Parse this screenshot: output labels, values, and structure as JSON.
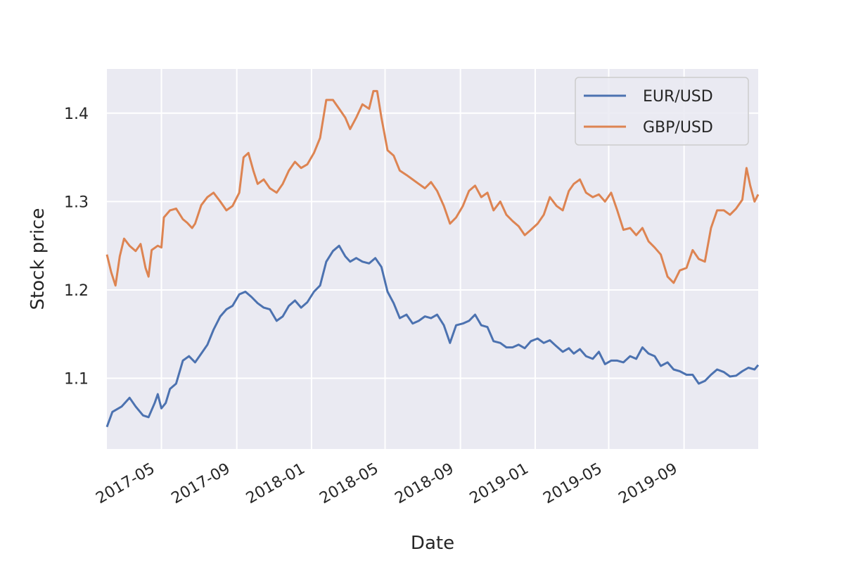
{
  "chart_data": {
    "type": "line",
    "xlabel": "Date",
    "ylabel": "Stock price",
    "x_ticks": [
      "2017-05",
      "2017-09",
      "2018-01",
      "2018-05",
      "2018-09",
      "2019-01",
      "2019-05",
      "2019-09"
    ],
    "xlim": [
      "2017-02-01",
      "2019-12-31"
    ],
    "y_ticks": [
      1.1,
      1.2,
      1.3,
      1.4
    ],
    "ylim": [
      1.02,
      1.45
    ],
    "grid": true,
    "legend_position": "top-right",
    "series": [
      {
        "name": "EUR/USD",
        "color": "#4c72b0",
        "points": [
          [
            "2017-02-01",
            1.045
          ],
          [
            "2017-02-10",
            1.062
          ],
          [
            "2017-02-25",
            1.068
          ],
          [
            "2017-03-10",
            1.078
          ],
          [
            "2017-03-20",
            1.068
          ],
          [
            "2017-04-01",
            1.058
          ],
          [
            "2017-04-10",
            1.056
          ],
          [
            "2017-04-20",
            1.072
          ],
          [
            "2017-04-25",
            1.082
          ],
          [
            "2017-05-01",
            1.066
          ],
          [
            "2017-05-08",
            1.072
          ],
          [
            "2017-05-15",
            1.088
          ],
          [
            "2017-05-25",
            1.094
          ],
          [
            "2017-06-05",
            1.12
          ],
          [
            "2017-06-15",
            1.125
          ],
          [
            "2017-06-25",
            1.118
          ],
          [
            "2017-07-05",
            1.128
          ],
          [
            "2017-07-15",
            1.138
          ],
          [
            "2017-07-25",
            1.155
          ],
          [
            "2017-08-05",
            1.17
          ],
          [
            "2017-08-15",
            1.178
          ],
          [
            "2017-08-25",
            1.182
          ],
          [
            "2017-09-05",
            1.195
          ],
          [
            "2017-09-15",
            1.198
          ],
          [
            "2017-09-25",
            1.192
          ],
          [
            "2017-10-05",
            1.185
          ],
          [
            "2017-10-15",
            1.18
          ],
          [
            "2017-10-25",
            1.178
          ],
          [
            "2017-11-05",
            1.165
          ],
          [
            "2017-11-15",
            1.17
          ],
          [
            "2017-11-25",
            1.182
          ],
          [
            "2017-12-05",
            1.188
          ],
          [
            "2017-12-15",
            1.18
          ],
          [
            "2017-12-25",
            1.186
          ],
          [
            "2018-01-05",
            1.198
          ],
          [
            "2018-01-15",
            1.205
          ],
          [
            "2018-01-25",
            1.232
          ],
          [
            "2018-02-05",
            1.244
          ],
          [
            "2018-02-15",
            1.25
          ],
          [
            "2018-02-25",
            1.238
          ],
          [
            "2018-03-05",
            1.232
          ],
          [
            "2018-03-15",
            1.236
          ],
          [
            "2018-03-25",
            1.232
          ],
          [
            "2018-04-05",
            1.23
          ],
          [
            "2018-04-15",
            1.236
          ],
          [
            "2018-04-25",
            1.226
          ],
          [
            "2018-05-05",
            1.198
          ],
          [
            "2018-05-15",
            1.185
          ],
          [
            "2018-05-25",
            1.168
          ],
          [
            "2018-06-05",
            1.172
          ],
          [
            "2018-06-15",
            1.162
          ],
          [
            "2018-06-25",
            1.165
          ],
          [
            "2018-07-05",
            1.17
          ],
          [
            "2018-07-15",
            1.168
          ],
          [
            "2018-07-25",
            1.172
          ],
          [
            "2018-08-05",
            1.16
          ],
          [
            "2018-08-15",
            1.14
          ],
          [
            "2018-08-25",
            1.16
          ],
          [
            "2018-09-05",
            1.162
          ],
          [
            "2018-09-15",
            1.165
          ],
          [
            "2018-09-25",
            1.172
          ],
          [
            "2018-10-05",
            1.16
          ],
          [
            "2018-10-15",
            1.158
          ],
          [
            "2018-10-25",
            1.142
          ],
          [
            "2018-11-05",
            1.14
          ],
          [
            "2018-11-15",
            1.135
          ],
          [
            "2018-11-25",
            1.135
          ],
          [
            "2018-12-05",
            1.138
          ],
          [
            "2018-12-15",
            1.134
          ],
          [
            "2018-12-25",
            1.142
          ],
          [
            "2019-01-05",
            1.145
          ],
          [
            "2019-01-15",
            1.14
          ],
          [
            "2019-01-25",
            1.143
          ],
          [
            "2019-02-05",
            1.136
          ],
          [
            "2019-02-15",
            1.13
          ],
          [
            "2019-02-25",
            1.134
          ],
          [
            "2019-03-05",
            1.128
          ],
          [
            "2019-03-15",
            1.133
          ],
          [
            "2019-03-25",
            1.125
          ],
          [
            "2019-04-05",
            1.122
          ],
          [
            "2019-04-15",
            1.13
          ],
          [
            "2019-04-25",
            1.116
          ],
          [
            "2019-05-05",
            1.12
          ],
          [
            "2019-05-15",
            1.12
          ],
          [
            "2019-05-25",
            1.118
          ],
          [
            "2019-06-05",
            1.125
          ],
          [
            "2019-06-15",
            1.122
          ],
          [
            "2019-06-25",
            1.135
          ],
          [
            "2019-07-05",
            1.128
          ],
          [
            "2019-07-15",
            1.125
          ],
          [
            "2019-07-25",
            1.114
          ],
          [
            "2019-08-05",
            1.118
          ],
          [
            "2019-08-15",
            1.11
          ],
          [
            "2019-08-25",
            1.108
          ],
          [
            "2019-09-05",
            1.104
          ],
          [
            "2019-09-15",
            1.104
          ],
          [
            "2019-09-25",
            1.094
          ],
          [
            "2019-10-05",
            1.097
          ],
          [
            "2019-10-15",
            1.104
          ],
          [
            "2019-10-25",
            1.11
          ],
          [
            "2019-11-05",
            1.107
          ],
          [
            "2019-11-15",
            1.102
          ],
          [
            "2019-11-25",
            1.103
          ],
          [
            "2019-12-05",
            1.108
          ],
          [
            "2019-12-15",
            1.112
          ],
          [
            "2019-12-25",
            1.11
          ],
          [
            "2019-12-31",
            1.115
          ]
        ]
      },
      {
        "name": "GBP/USD",
        "color": "#dd8452",
        "points": [
          [
            "2017-02-01",
            1.24
          ],
          [
            "2017-02-08",
            1.22
          ],
          [
            "2017-02-15",
            1.205
          ],
          [
            "2017-02-22",
            1.238
          ],
          [
            "2017-03-01",
            1.258
          ],
          [
            "2017-03-10",
            1.25
          ],
          [
            "2017-03-20",
            1.244
          ],
          [
            "2017-03-28",
            1.252
          ],
          [
            "2017-04-05",
            1.225
          ],
          [
            "2017-04-10",
            1.215
          ],
          [
            "2017-04-15",
            1.245
          ],
          [
            "2017-04-25",
            1.25
          ],
          [
            "2017-05-01",
            1.248
          ],
          [
            "2017-05-05",
            1.282
          ],
          [
            "2017-05-15",
            1.29
          ],
          [
            "2017-05-25",
            1.292
          ],
          [
            "2017-06-05",
            1.28
          ],
          [
            "2017-06-12",
            1.276
          ],
          [
            "2017-06-20",
            1.27
          ],
          [
            "2017-06-25",
            1.275
          ],
          [
            "2017-07-05",
            1.296
          ],
          [
            "2017-07-15",
            1.305
          ],
          [
            "2017-07-25",
            1.31
          ],
          [
            "2017-08-05",
            1.3
          ],
          [
            "2017-08-15",
            1.29
          ],
          [
            "2017-08-25",
            1.295
          ],
          [
            "2017-09-05",
            1.31
          ],
          [
            "2017-09-12",
            1.35
          ],
          [
            "2017-09-20",
            1.355
          ],
          [
            "2017-09-28",
            1.335
          ],
          [
            "2017-10-05",
            1.32
          ],
          [
            "2017-10-15",
            1.325
          ],
          [
            "2017-10-25",
            1.315
          ],
          [
            "2017-11-05",
            1.31
          ],
          [
            "2017-11-15",
            1.32
          ],
          [
            "2017-11-25",
            1.335
          ],
          [
            "2017-12-05",
            1.345
          ],
          [
            "2017-12-15",
            1.338
          ],
          [
            "2017-12-25",
            1.342
          ],
          [
            "2018-01-05",
            1.355
          ],
          [
            "2018-01-15",
            1.372
          ],
          [
            "2018-01-25",
            1.415
          ],
          [
            "2018-02-05",
            1.415
          ],
          [
            "2018-02-15",
            1.405
          ],
          [
            "2018-02-25",
            1.395
          ],
          [
            "2018-03-05",
            1.382
          ],
          [
            "2018-03-15",
            1.395
          ],
          [
            "2018-03-25",
            1.41
          ],
          [
            "2018-04-05",
            1.405
          ],
          [
            "2018-04-12",
            1.425
          ],
          [
            "2018-04-18",
            1.425
          ],
          [
            "2018-04-25",
            1.395
          ],
          [
            "2018-05-05",
            1.358
          ],
          [
            "2018-05-15",
            1.352
          ],
          [
            "2018-05-25",
            1.335
          ],
          [
            "2018-06-05",
            1.33
          ],
          [
            "2018-06-15",
            1.325
          ],
          [
            "2018-06-25",
            1.32
          ],
          [
            "2018-07-05",
            1.315
          ],
          [
            "2018-07-15",
            1.322
          ],
          [
            "2018-07-25",
            1.312
          ],
          [
            "2018-08-05",
            1.295
          ],
          [
            "2018-08-15",
            1.275
          ],
          [
            "2018-08-25",
            1.282
          ],
          [
            "2018-09-05",
            1.295
          ],
          [
            "2018-09-15",
            1.312
          ],
          [
            "2018-09-25",
            1.318
          ],
          [
            "2018-10-05",
            1.305
          ],
          [
            "2018-10-15",
            1.31
          ],
          [
            "2018-10-25",
            1.29
          ],
          [
            "2018-11-05",
            1.3
          ],
          [
            "2018-11-15",
            1.285
          ],
          [
            "2018-11-25",
            1.278
          ],
          [
            "2018-12-05",
            1.272
          ],
          [
            "2018-12-15",
            1.262
          ],
          [
            "2018-12-25",
            1.268
          ],
          [
            "2019-01-05",
            1.275
          ],
          [
            "2019-01-15",
            1.285
          ],
          [
            "2019-01-25",
            1.305
          ],
          [
            "2019-02-05",
            1.295
          ],
          [
            "2019-02-15",
            1.29
          ],
          [
            "2019-02-25",
            1.312
          ],
          [
            "2019-03-05",
            1.32
          ],
          [
            "2019-03-15",
            1.325
          ],
          [
            "2019-03-25",
            1.31
          ],
          [
            "2019-04-05",
            1.305
          ],
          [
            "2019-04-15",
            1.308
          ],
          [
            "2019-04-25",
            1.3
          ],
          [
            "2019-05-05",
            1.31
          ],
          [
            "2019-05-15",
            1.29
          ],
          [
            "2019-05-25",
            1.268
          ],
          [
            "2019-06-05",
            1.27
          ],
          [
            "2019-06-15",
            1.262
          ],
          [
            "2019-06-25",
            1.27
          ],
          [
            "2019-07-05",
            1.255
          ],
          [
            "2019-07-15",
            1.248
          ],
          [
            "2019-07-25",
            1.24
          ],
          [
            "2019-08-05",
            1.215
          ],
          [
            "2019-08-15",
            1.208
          ],
          [
            "2019-08-25",
            1.222
          ],
          [
            "2019-09-05",
            1.225
          ],
          [
            "2019-09-15",
            1.245
          ],
          [
            "2019-09-25",
            1.235
          ],
          [
            "2019-10-05",
            1.232
          ],
          [
            "2019-10-15",
            1.27
          ],
          [
            "2019-10-25",
            1.29
          ],
          [
            "2019-11-05",
            1.29
          ],
          [
            "2019-11-15",
            1.285
          ],
          [
            "2019-11-25",
            1.292
          ],
          [
            "2019-12-05",
            1.302
          ],
          [
            "2019-12-12",
            1.338
          ],
          [
            "2019-12-18",
            1.318
          ],
          [
            "2019-12-25",
            1.3
          ],
          [
            "2019-12-31",
            1.308
          ]
        ]
      }
    ]
  }
}
